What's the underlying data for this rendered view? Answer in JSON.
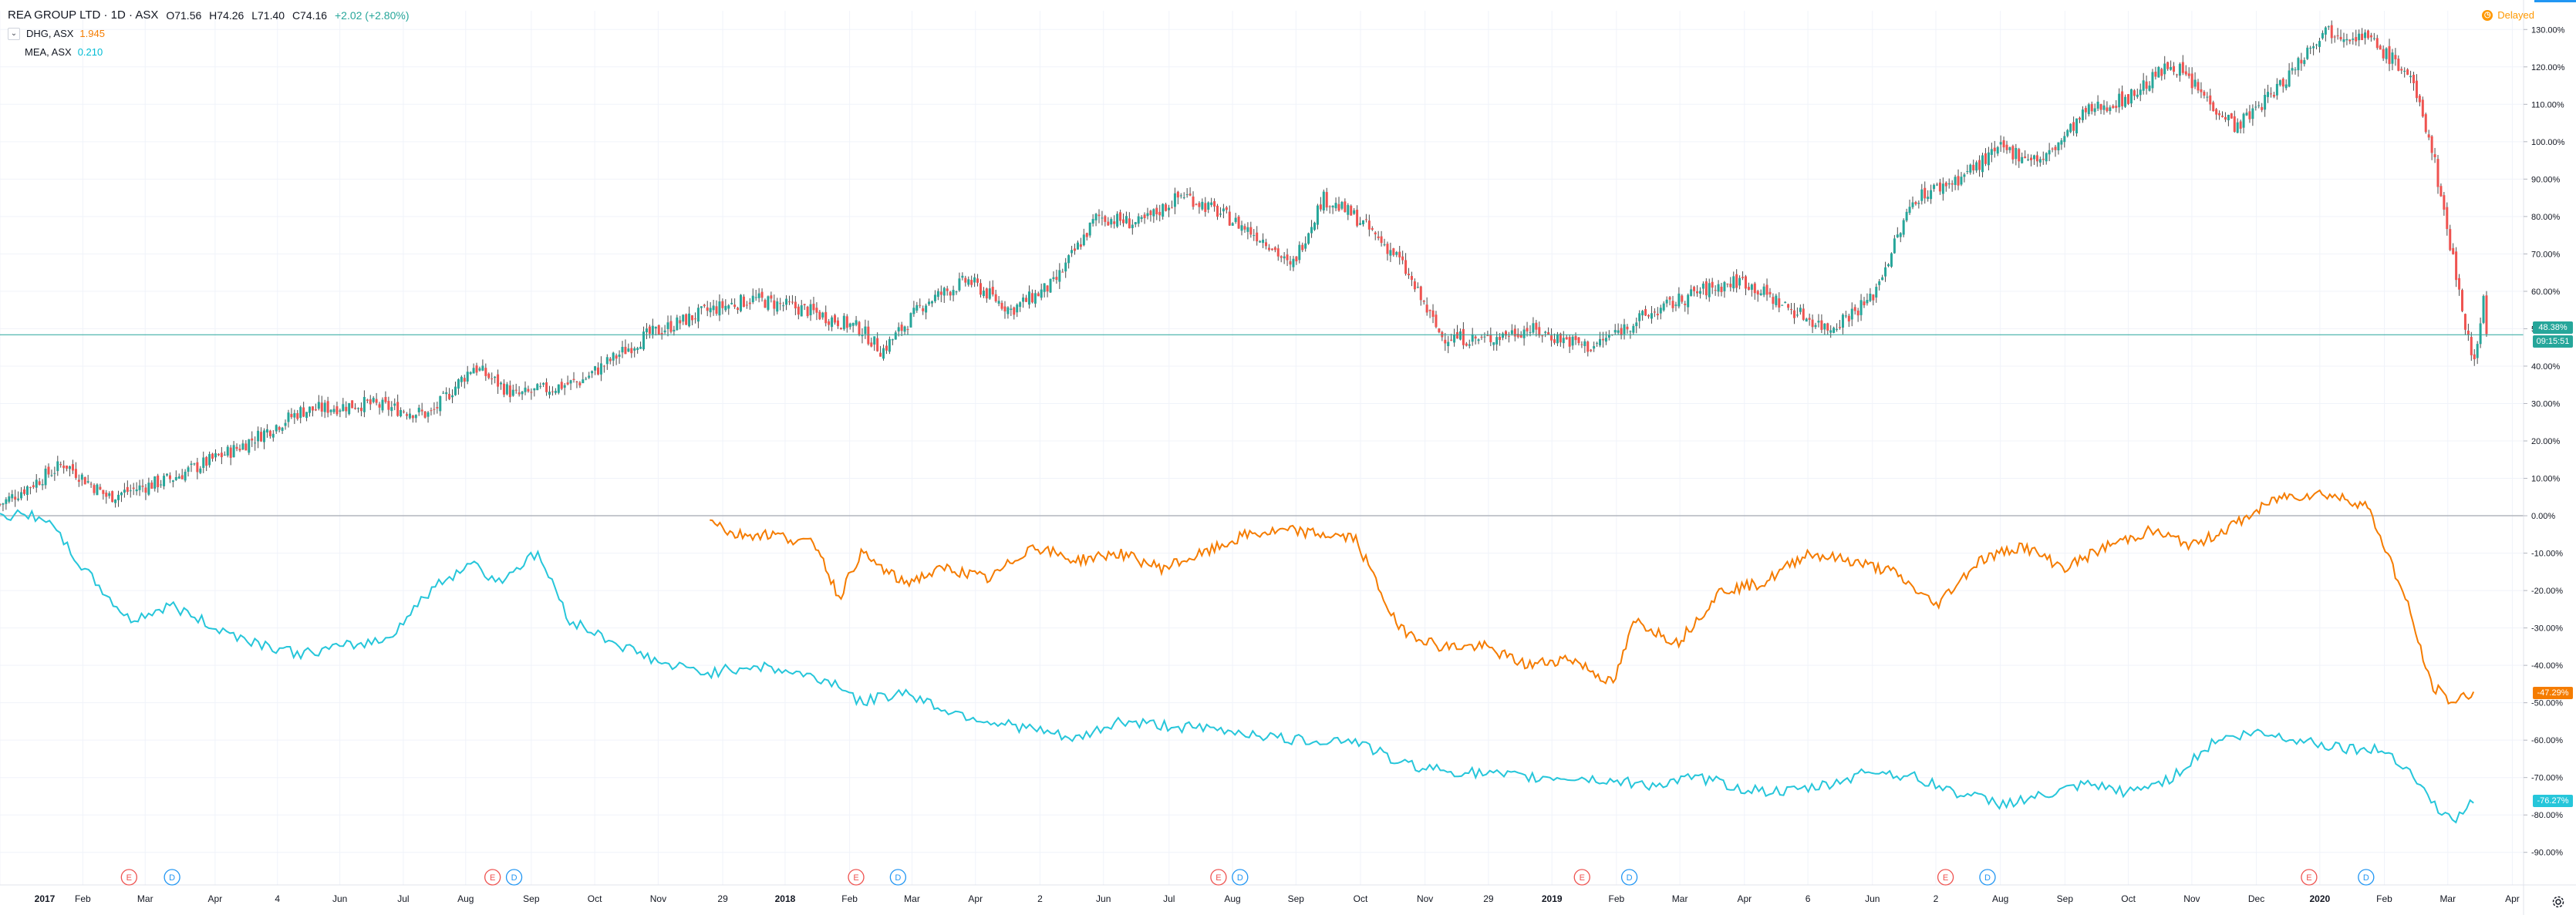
{
  "legend": {
    "title": "REA GROUP LTD · 1D · ASX",
    "open": "O71.56",
    "high": "H74.26",
    "low": "L71.40",
    "close": "C74.16",
    "change": "+2.02 (+2.80%)",
    "compares": [
      {
        "name": "DHG, ASX",
        "value": "1.945"
      },
      {
        "name": "MEA, ASX",
        "value": "0.210"
      }
    ]
  },
  "status": {
    "delayed": "Delayed"
  },
  "colors": {
    "up": "#26a69a",
    "down": "#ef5350",
    "orange": "#f57c00",
    "teal": "#26c6da",
    "price_line": "#26a69a",
    "earnings": "#ef5350",
    "dividends": "#2196f3"
  },
  "price_tags": {
    "main_pct": "48.38%",
    "main_time": "09:15:51",
    "orange_pct": "-47.29%",
    "teal_pct": "-76.27%"
  },
  "chart_data": {
    "type": "line",
    "yaxis": {
      "min": -95,
      "max": 135,
      "step": 10,
      "ticks": [
        "130.00%",
        "120.00%",
        "110.00%",
        "100.00%",
        "90.00%",
        "80.00%",
        "70.00%",
        "60.00%",
        "50.00%",
        "40.00%",
        "30.00%",
        "20.00%",
        "10.00%",
        "0.00%",
        "-10.00%",
        "-20.00%",
        "-30.00%",
        "-40.00%",
        "-50.00%",
        "-60.00%",
        "-70.00%",
        "-80.00%",
        "-90.00%"
      ]
    },
    "xaxis_ticks": [
      "2017",
      "Feb",
      "Mar",
      "Apr",
      "4",
      "Jun",
      "Jul",
      "Aug",
      "Sep",
      "Oct",
      "Nov",
      "29",
      "2018",
      "Feb",
      "Mar",
      "Apr",
      "2",
      "Jun",
      "Jul",
      "Aug",
      "Sep",
      "Oct",
      "Nov",
      "29",
      "2019",
      "Feb",
      "Mar",
      "Apr",
      "6",
      "Jun",
      "2",
      "Aug",
      "Sep",
      "Oct",
      "Nov",
      "Dec",
      "2020",
      "Feb",
      "Mar",
      "Apr"
    ],
    "xaxis_pos": [
      0.0,
      0.077,
      0.135,
      0.2,
      0.258,
      0.316,
      0.375,
      0.433,
      0.494,
      0.553,
      0.612,
      0.672,
      0.73,
      0.79,
      0.848,
      0.907,
      0.967,
      1.026,
      1.087,
      1.146,
      1.205,
      1.265,
      1.325,
      1.384,
      1.443,
      1.503,
      1.562,
      1.622,
      1.681,
      1.741,
      1.8,
      1.86,
      1.92,
      1.979,
      2.038,
      2.098,
      2.157,
      2.217,
      2.276,
      2.336
    ],
    "x_start": "2016-12-22",
    "x_end": "2020-03-27",
    "series": [
      {
        "name": "REA GROUP LTD",
        "style": "candles",
        "points": [
          [
            0.0,
            3
          ],
          [
            0.06,
            14
          ],
          [
            0.1,
            5
          ],
          [
            0.16,
            10
          ],
          [
            0.22,
            18
          ],
          [
            0.28,
            28
          ],
          [
            0.34,
            30
          ],
          [
            0.4,
            27
          ],
          [
            0.44,
            40
          ],
          [
            0.48,
            32
          ],
          [
            0.54,
            36
          ],
          [
            0.6,
            48
          ],
          [
            0.66,
            55
          ],
          [
            0.7,
            58
          ],
          [
            0.75,
            55
          ],
          [
            0.8,
            50
          ],
          [
            0.82,
            44
          ],
          [
            0.86,
            57
          ],
          [
            0.9,
            63
          ],
          [
            0.94,
            55
          ],
          [
            0.98,
            62
          ],
          [
            1.02,
            80
          ],
          [
            1.06,
            78
          ],
          [
            1.1,
            86
          ],
          [
            1.14,
            80
          ],
          [
            1.18,
            73
          ],
          [
            1.2,
            66
          ],
          [
            1.23,
            85
          ],
          [
            1.26,
            80
          ],
          [
            1.3,
            69
          ],
          [
            1.34,
            48
          ],
          [
            1.38,
            47
          ],
          [
            1.42,
            50
          ],
          [
            1.48,
            45
          ],
          [
            1.52,
            52
          ],
          [
            1.58,
            60
          ],
          [
            1.62,
            63
          ],
          [
            1.66,
            56
          ],
          [
            1.7,
            50
          ],
          [
            1.74,
            58
          ],
          [
            1.78,
            85
          ],
          [
            1.82,
            90
          ],
          [
            1.86,
            98
          ],
          [
            1.9,
            95
          ],
          [
            1.94,
            108
          ],
          [
            1.98,
            112
          ],
          [
            2.02,
            121
          ],
          [
            2.05,
            112
          ],
          [
            2.08,
            104
          ],
          [
            2.12,
            115
          ],
          [
            2.16,
            130
          ],
          [
            2.2,
            128
          ],
          [
            2.24,
            118
          ],
          [
            2.26,
            100
          ],
          [
            2.28,
            70
          ],
          [
            2.3,
            40
          ],
          [
            2.31,
            60
          ],
          [
            2.312,
            48
          ]
        ]
      },
      {
        "name": "DHG, ASX",
        "style": "line",
        "points": [
          [
            0.66,
            0
          ],
          [
            0.68,
            -5
          ],
          [
            0.72,
            -5
          ],
          [
            0.76,
            -8
          ],
          [
            0.78,
            -22
          ],
          [
            0.8,
            -10
          ],
          [
            0.84,
            -18
          ],
          [
            0.88,
            -14
          ],
          [
            0.92,
            -17
          ],
          [
            0.96,
            -8
          ],
          [
            1.0,
            -12
          ],
          [
            1.04,
            -10
          ],
          [
            1.08,
            -14
          ],
          [
            1.12,
            -10
          ],
          [
            1.16,
            -5
          ],
          [
            1.2,
            -4
          ],
          [
            1.26,
            -6
          ],
          [
            1.3,
            -30
          ],
          [
            1.34,
            -35
          ],
          [
            1.38,
            -35
          ],
          [
            1.42,
            -40
          ],
          [
            1.46,
            -38
          ],
          [
            1.5,
            -45
          ],
          [
            1.52,
            -28
          ],
          [
            1.56,
            -34
          ],
          [
            1.6,
            -20
          ],
          [
            1.64,
            -18
          ],
          [
            1.68,
            -10
          ],
          [
            1.72,
            -12
          ],
          [
            1.76,
            -15
          ],
          [
            1.8,
            -24
          ],
          [
            1.84,
            -12
          ],
          [
            1.88,
            -8
          ],
          [
            1.92,
            -14
          ],
          [
            1.96,
            -8
          ],
          [
            2.0,
            -4
          ],
          [
            2.04,
            -8
          ],
          [
            2.08,
            -2
          ],
          [
            2.12,
            5
          ],
          [
            2.16,
            6
          ],
          [
            2.2,
            3
          ],
          [
            2.22,
            -10
          ],
          [
            2.24,
            -25
          ],
          [
            2.26,
            -45
          ],
          [
            2.28,
            -50
          ],
          [
            2.3,
            -47
          ]
        ]
      },
      {
        "name": "MEA, ASX",
        "style": "line",
        "points": [
          [
            0.0,
            0
          ],
          [
            0.04,
            0
          ],
          [
            0.08,
            -15
          ],
          [
            0.12,
            -28
          ],
          [
            0.16,
            -24
          ],
          [
            0.2,
            -30
          ],
          [
            0.24,
            -34
          ],
          [
            0.28,
            -37
          ],
          [
            0.32,
            -35
          ],
          [
            0.36,
            -33
          ],
          [
            0.4,
            -20
          ],
          [
            0.44,
            -12
          ],
          [
            0.46,
            -18
          ],
          [
            0.5,
            -10
          ],
          [
            0.53,
            -28
          ],
          [
            0.58,
            -35
          ],
          [
            0.62,
            -40
          ],
          [
            0.66,
            -42
          ],
          [
            0.7,
            -40
          ],
          [
            0.74,
            -42
          ],
          [
            0.78,
            -45
          ],
          [
            0.8,
            -50
          ],
          [
            0.84,
            -47
          ],
          [
            0.88,
            -52
          ],
          [
            0.92,
            -55
          ],
          [
            0.96,
            -57
          ],
          [
            1.0,
            -60
          ],
          [
            1.04,
            -55
          ],
          [
            1.08,
            -56
          ],
          [
            1.12,
            -57
          ],
          [
            1.16,
            -58
          ],
          [
            1.2,
            -60
          ],
          [
            1.26,
            -60
          ],
          [
            1.3,
            -66
          ],
          [
            1.34,
            -68
          ],
          [
            1.38,
            -69
          ],
          [
            1.42,
            -70
          ],
          [
            1.46,
            -70
          ],
          [
            1.5,
            -71
          ],
          [
            1.54,
            -72
          ],
          [
            1.58,
            -70
          ],
          [
            1.62,
            -73
          ],
          [
            1.66,
            -74
          ],
          [
            1.7,
            -72
          ],
          [
            1.74,
            -68
          ],
          [
            1.78,
            -70
          ],
          [
            1.82,
            -74
          ],
          [
            1.86,
            -77
          ],
          [
            1.9,
            -75
          ],
          [
            1.94,
            -72
          ],
          [
            1.98,
            -74
          ],
          [
            2.02,
            -70
          ],
          [
            2.06,
            -60
          ],
          [
            2.1,
            -58
          ],
          [
            2.14,
            -60
          ],
          [
            2.18,
            -62
          ],
          [
            2.22,
            -63
          ],
          [
            2.24,
            -68
          ],
          [
            2.26,
            -76
          ],
          [
            2.28,
            -82
          ],
          [
            2.3,
            -76
          ]
        ]
      }
    ],
    "events": [
      {
        "label": "E",
        "x": 0.12
      },
      {
        "label": "D",
        "x": 0.16
      },
      {
        "label": "E",
        "x": 0.458
      },
      {
        "label": "D",
        "x": 0.478
      },
      {
        "label": "E",
        "x": 0.796
      },
      {
        "label": "D",
        "x": 0.835
      },
      {
        "label": "E",
        "x": 1.133
      },
      {
        "label": "D",
        "x": 1.153
      },
      {
        "label": "E",
        "x": 1.471
      },
      {
        "label": "D",
        "x": 1.515
      },
      {
        "label": "E",
        "x": 1.809
      },
      {
        "label": "D",
        "x": 1.848
      },
      {
        "label": "E",
        "x": 2.147
      },
      {
        "label": "D",
        "x": 2.2
      }
    ],
    "grid": true
  }
}
